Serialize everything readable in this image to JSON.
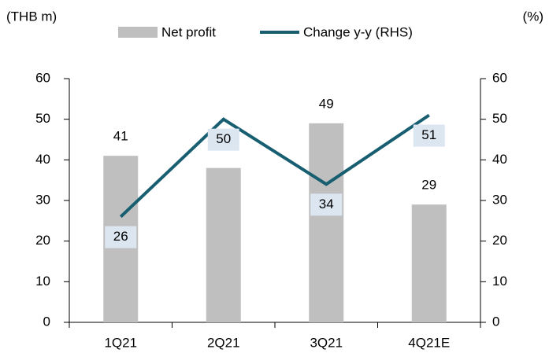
{
  "chart_data": {
    "type": "bar",
    "y_label": "(THB m)",
    "y2_label": "(%)",
    "categories": [
      "1Q21",
      "2Q21",
      "3Q21",
      "4Q21E"
    ],
    "series": [
      {
        "name": "Net profit",
        "type": "bar",
        "color": "#bfbfbf",
        "values": [
          41,
          38,
          49,
          29
        ],
        "value_labels": [
          "41",
          null,
          "49",
          "29"
        ]
      },
      {
        "name": "Change y-y (RHS)",
        "type": "line",
        "axis": "y2",
        "color": "#175e70",
        "values": [
          26,
          50,
          34,
          51
        ]
      }
    ],
    "ylim": [
      0,
      60
    ],
    "yticks": [
      0,
      10,
      20,
      30,
      40,
      50,
      60
    ],
    "y2lim": [
      0,
      60
    ],
    "y2ticks": [
      0,
      10,
      20,
      30,
      40,
      50,
      60
    ],
    "legend": "top",
    "grid": false
  }
}
